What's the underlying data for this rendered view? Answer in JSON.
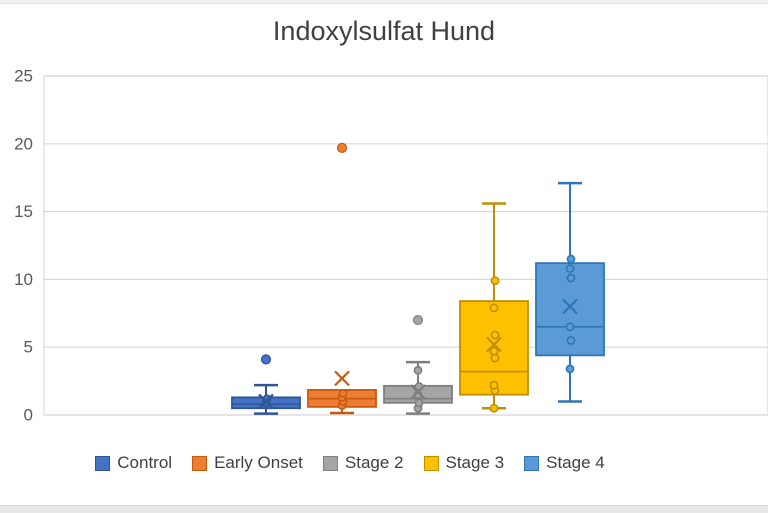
{
  "page": {
    "background": "#ffffff",
    "top_strip_color": "#efefef",
    "bottom_strip_color": "#e8e8e8"
  },
  "chart_data": {
    "type": "boxplot",
    "title": "Indoxylsulfat Hund",
    "title_color": "#404040",
    "xlabel": "",
    "ylabel": "",
    "ylim": [
      0,
      25
    ],
    "yticks": [
      0,
      5,
      10,
      15,
      20,
      25
    ],
    "grid": true,
    "gridline_color": "#d9d9d9",
    "axis_tick_color": "#595959",
    "legend_position": "bottom",
    "series": [
      {
        "name": "Control",
        "fill": "#4472C4",
        "stroke": "#2F5597",
        "whisker_low": 0.1,
        "q1": 0.5,
        "median": 0.8,
        "q3": 1.3,
        "whisker_high": 2.2,
        "mean": 1.0,
        "outliers": [
          4.1
        ],
        "points": [
          0.9,
          1.2
        ]
      },
      {
        "name": "Early Onset",
        "fill": "#ED7D31",
        "stroke": "#C55A11",
        "whisker_low": 0.15,
        "q1": 0.6,
        "median": 1.2,
        "q3": 1.85,
        "whisker_high": 1.85,
        "mean": 2.7,
        "outliers": [
          19.7
        ],
        "points": [
          0.7,
          1.0,
          1.3,
          1.6
        ]
      },
      {
        "name": "Stage 2",
        "fill": "#A5A5A5",
        "stroke": "#7F7F7F",
        "whisker_low": 0.1,
        "q1": 0.9,
        "median": 1.2,
        "q3": 2.15,
        "whisker_high": 3.9,
        "mean": 1.7,
        "outliers": [
          7.0
        ],
        "points": [
          0.5,
          0.9,
          1.5,
          2.1,
          3.3
        ]
      },
      {
        "name": "Stage 3",
        "fill": "#FFC000",
        "stroke": "#BF8F00",
        "whisker_low": 0.5,
        "q1": 1.5,
        "median": 3.2,
        "q3": 8.4,
        "whisker_high": 15.6,
        "mean": 5.2,
        "outliers": [],
        "points": [
          0.5,
          1.8,
          2.2,
          4.2,
          4.7,
          5.9,
          7.9,
          9.9
        ]
      },
      {
        "name": "Stage 4",
        "fill": "#5B9BD5",
        "stroke": "#2E75B6",
        "whisker_low": 1.0,
        "q1": 4.4,
        "median": 6.5,
        "q3": 11.2,
        "whisker_high": 17.1,
        "mean": 8.0,
        "outliers": [],
        "points": [
          3.4,
          5.5,
          6.5,
          10.1,
          10.8,
          11.5
        ]
      }
    ]
  }
}
